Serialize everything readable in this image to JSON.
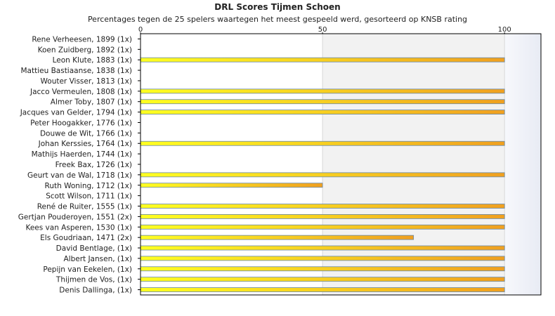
{
  "chart_data": {
    "type": "bar",
    "orientation": "horizontal",
    "title": "DRL Scores Tijmen Schoen",
    "subtitle": "Percentages tegen de 25 spelers waartegen het meest gespeeld werd, gesorteerd op KNSB rating",
    "xlim": [
      0,
      110
    ],
    "x_ticks": [
      0,
      50,
      100
    ],
    "x_axis_position": "top",
    "grid": true,
    "categories": [
      "Rene Verheesen, 1899 (1x)",
      "Koen Zuidberg, 1892 (1x)",
      "Leon Klute, 1883 (1x)",
      "Mattieu Bastiaanse, 1838 (1x)",
      "Wouter Visser, 1813 (1x)",
      "Jacco Vermeulen, 1808 (1x)",
      "Almer Toby, 1807 (1x)",
      "Jacques van Gelder, 1794 (1x)",
      "Peter Hoogakker, 1776 (1x)",
      "Douwe de Wit, 1766 (1x)",
      "Johan Kerssies, 1764 (1x)",
      "Mathijs Haerden, 1744 (1x)",
      "Freek Bax, 1726 (1x)",
      "Geurt van de Wal, 1718 (1x)",
      "Ruth Woning, 1712 (1x)",
      "Scott Wilson, 1711 (1x)",
      "René de Ruiter, 1555 (1x)",
      "Gertjan Pouderoyen, 1551 (2x)",
      "Kees van Asperen, 1530 (1x)",
      "Els Goudriaan, 1471 (2x)",
      "David Bentlage,  (1x)",
      "Albert Jansen,  (1x)",
      "Pepijn van Eekelen,  (1x)",
      "Thijmen de Vos,  (1x)",
      "Denis Dallinga,  (1x)"
    ],
    "values": [
      0,
      0,
      100,
      0,
      0,
      100,
      100,
      100,
      0,
      0,
      100,
      0,
      0,
      100,
      50,
      0,
      100,
      100,
      100,
      75,
      100,
      100,
      100,
      100,
      100
    ],
    "colors": {
      "bar_start": "#ffff22",
      "bar_end": "#f0a020",
      "bar_border": "#6688aa",
      "band_light": "#f2f2f2",
      "band_edge": "#eef0f6",
      "grid": "#d8d8d8",
      "axis": "#000000"
    }
  }
}
